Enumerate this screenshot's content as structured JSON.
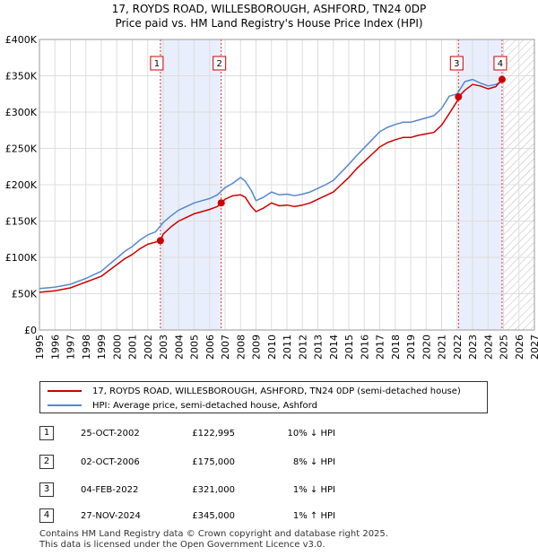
{
  "header": {
    "title": "17, ROYDS ROAD, WILLESBOROUGH, ASHFORD, TN24 0DP",
    "subtitle": "Price paid vs. HM Land Registry's House Price Index (HPI)"
  },
  "legend": {
    "property_label": "17, ROYDS ROAD, WILLESBOROUGH, ASHFORD, TN24 0DP (semi-detached house)",
    "hpi_label": "HPI: Average price, semi-detached house, Ashford"
  },
  "colors": {
    "property": "#cc0000",
    "hpi": "#5588cc",
    "shade": "#e8eefb"
  },
  "transactions": [
    {
      "num": "1",
      "date": "25-OCT-2002",
      "price": "£122,995",
      "hpi": "10% ↓ HPI"
    },
    {
      "num": "2",
      "date": "02-OCT-2006",
      "price": "£175,000",
      "hpi": "8% ↓ HPI"
    },
    {
      "num": "3",
      "date": "04-FEB-2022",
      "price": "£321,000",
      "hpi": "1% ↓ HPI"
    },
    {
      "num": "4",
      "date": "27-NOV-2024",
      "price": "£345,000",
      "hpi": "1% ↑ HPI"
    }
  ],
  "footer": {
    "line1": "Contains HM Land Registry data © Crown copyright and database right 2025.",
    "line2": "This data is licensed under the Open Government Licence v3.0."
  },
  "chart_data": {
    "type": "line",
    "title": "17, ROYDS ROAD, WILLESBOROUGH, ASHFORD, TN24 0DP",
    "subtitle": "Price paid vs. HM Land Registry's House Price Index (HPI)",
    "xlabel": "",
    "ylabel": "",
    "xlim": [
      1995,
      2027
    ],
    "ylim": [
      0,
      400000
    ],
    "x_ticks": [
      "1995",
      "1996",
      "1997",
      "1998",
      "1999",
      "2000",
      "2001",
      "2002",
      "2003",
      "2004",
      "2005",
      "2006",
      "2007",
      "2008",
      "2009",
      "2010",
      "2011",
      "2012",
      "2013",
      "2014",
      "2015",
      "2016",
      "2017",
      "2018",
      "2019",
      "2020",
      "2021",
      "2022",
      "2023",
      "2024",
      "2025",
      "2026",
      "2027"
    ],
    "y_ticks": [
      {
        "value": 0,
        "label": "£0"
      },
      {
        "value": 50000,
        "label": "£50K"
      },
      {
        "value": 100000,
        "label": "£100K"
      },
      {
        "value": 150000,
        "label": "£150K"
      },
      {
        "value": 200000,
        "label": "£200K"
      },
      {
        "value": 250000,
        "label": "£250K"
      },
      {
        "value": 300000,
        "label": "£300K"
      },
      {
        "value": 350000,
        "label": "£350K"
      },
      {
        "value": 400000,
        "label": "£400K"
      }
    ],
    "grid": true,
    "legend_position": "below",
    "shaded_ranges": [
      [
        2002.82,
        2006.75
      ],
      [
        2022.09,
        2024.91
      ]
    ],
    "hatched_from": 2025.0,
    "series": [
      {
        "name": "17, ROYDS ROAD, WILLESBOROUGH, ASHFORD, TN24 0DP (semi-detached house)",
        "x": [
          1995.0,
          1995.5,
          1996.0,
          1996.5,
          1997.0,
          1997.5,
          1998.0,
          1998.5,
          1999.0,
          1999.5,
          2000.0,
          2000.5,
          2001.0,
          2001.5,
          2002.0,
          2002.5,
          2002.82,
          2003.0,
          2003.5,
          2004.0,
          2004.5,
          2005.0,
          2005.5,
          2006.0,
          2006.5,
          2006.75,
          2007.0,
          2007.5,
          2008.0,
          2008.3,
          2008.7,
          2009.0,
          2009.5,
          2010.0,
          2010.5,
          2011.0,
          2011.5,
          2012.0,
          2012.5,
          2013.0,
          2013.5,
          2014.0,
          2014.5,
          2015.0,
          2015.5,
          2016.0,
          2016.5,
          2017.0,
          2017.5,
          2018.0,
          2018.5,
          2019.0,
          2019.5,
          2020.0,
          2020.5,
          2021.0,
          2021.5,
          2022.0,
          2022.09,
          2022.5,
          2023.0,
          2023.5,
          2024.0,
          2024.5,
          2024.91
        ],
        "y": [
          52000,
          53000,
          54000,
          56000,
          58000,
          62000,
          66000,
          70000,
          74000,
          82000,
          90000,
          98000,
          104000,
          112000,
          118000,
          121000,
          122995,
          132000,
          142000,
          150000,
          155000,
          160000,
          163000,
          166000,
          170000,
          175000,
          180000,
          185000,
          186000,
          183000,
          170000,
          163000,
          168000,
          175000,
          171000,
          172000,
          170000,
          172000,
          175000,
          180000,
          185000,
          190000,
          200000,
          210000,
          222000,
          232000,
          242000,
          252000,
          258000,
          262000,
          265000,
          265000,
          268000,
          270000,
          272000,
          282000,
          298000,
          315000,
          321000,
          330000,
          338000,
          336000,
          332000,
          335000,
          345000
        ]
      },
      {
        "name": "HPI: Average price, semi-detached house, Ashford",
        "x": [
          1995.0,
          1995.5,
          1996.0,
          1996.5,
          1997.0,
          1997.5,
          1998.0,
          1998.5,
          1999.0,
          1999.5,
          2000.0,
          2000.5,
          2001.0,
          2001.5,
          2002.0,
          2002.5,
          2003.0,
          2003.5,
          2004.0,
          2004.5,
          2005.0,
          2005.5,
          2006.0,
          2006.5,
          2007.0,
          2007.5,
          2008.0,
          2008.3,
          2008.7,
          2009.0,
          2009.5,
          2010.0,
          2010.5,
          2011.0,
          2011.5,
          2012.0,
          2012.5,
          2013.0,
          2013.5,
          2014.0,
          2014.5,
          2015.0,
          2015.5,
          2016.0,
          2016.5,
          2017.0,
          2017.5,
          2018.0,
          2018.5,
          2019.0,
          2019.5,
          2020.0,
          2020.5,
          2021.0,
          2021.5,
          2022.0,
          2022.5,
          2023.0,
          2023.5,
          2024.0,
          2024.5,
          2024.91
        ],
        "y": [
          57000,
          58000,
          59000,
          61000,
          63000,
          67000,
          71000,
          76000,
          81000,
          90000,
          99000,
          108000,
          115000,
          124000,
          131000,
          135000,
          148000,
          157000,
          165000,
          170000,
          175000,
          178000,
          181000,
          186000,
          196000,
          202000,
          210000,
          205000,
          192000,
          178000,
          183000,
          190000,
          186000,
          187000,
          185000,
          187000,
          190000,
          195000,
          200000,
          206000,
          217000,
          228000,
          240000,
          251000,
          262000,
          273000,
          279000,
          283000,
          286000,
          286000,
          289000,
          292000,
          295000,
          305000,
          322000,
          325000,
          342000,
          345000,
          340000,
          336000,
          338000,
          342000
        ]
      }
    ],
    "markers": [
      {
        "label": "1",
        "x": 2002.82,
        "y": 122995
      },
      {
        "label": "2",
        "x": 2006.75,
        "y": 175000
      },
      {
        "label": "3",
        "x": 2022.09,
        "y": 321000
      },
      {
        "label": "4",
        "x": 2024.91,
        "y": 345000
      }
    ]
  }
}
